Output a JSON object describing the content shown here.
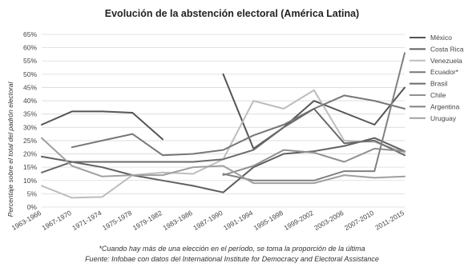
{
  "chart_data": {
    "type": "line",
    "title": "Evolución de la abstención electoral (América Latina)",
    "ylabel": "Percentaje sobre el total del padrón electoral",
    "xlabel": "",
    "ylim": [
      0,
      65
    ],
    "yticks": [
      "0%",
      "5%",
      "10%",
      "15%",
      "20%",
      "25%",
      "30%",
      "35%",
      "40%",
      "45%",
      "50%",
      "55%",
      "60%",
      "65%"
    ],
    "categories": [
      "1963-1966",
      "1967-1970",
      "1971-1974",
      "1975-1978",
      "1979-1982",
      "1983-1986",
      "1987-1990",
      "1991-1994",
      "1995-1998",
      "1999-2002",
      "2003-2006",
      "2007-2010",
      "2011-2015"
    ],
    "grid": true,
    "legend_position": "right",
    "series": [
      {
        "name": "México",
        "color": "#555555",
        "values": [
          31,
          36,
          36,
          35.5,
          25.5,
          null,
          50,
          22,
          30,
          40,
          35.5,
          31,
          45
        ]
      },
      {
        "name": "Costa Rica",
        "color": "#606060",
        "values": [
          19,
          17,
          15,
          12,
          10,
          8,
          5.5,
          15,
          20,
          21,
          23,
          26,
          21
        ]
      },
      {
        "name": "Venezuela",
        "color": "#bdbdbd",
        "values": [
          8,
          3.5,
          3.8,
          12,
          13,
          12.5,
          18,
          40,
          37,
          44,
          25,
          24.5,
          20.5
        ]
      },
      {
        "name": "Ecuador*",
        "color": "#777777",
        "values": [
          null,
          22.5,
          25,
          27.5,
          19.5,
          20,
          21.5,
          27,
          31,
          37,
          42,
          40,
          37
        ]
      },
      {
        "name": "Brasil",
        "color": "#6a6a6a",
        "values": [
          13,
          17,
          17,
          17,
          17,
          17,
          18,
          21.5,
          30,
          37,
          24,
          25,
          19.5
        ]
      },
      {
        "name": "Chile",
        "color": "#909090",
        "values": [
          null,
          null,
          null,
          null,
          null,
          null,
          12,
          15.5,
          21.5,
          20.5,
          17,
          22,
          21
        ]
      },
      {
        "name": "Argentina",
        "color": "#808080",
        "values": [
          null,
          null,
          null,
          null,
          null,
          null,
          12.5,
          10,
          10,
          10,
          13.5,
          13.5,
          58
        ]
      },
      {
        "name": "Uruguay",
        "color": "#a0a0a0",
        "values": [
          26,
          15.5,
          11.5,
          12,
          12,
          15,
          15.5,
          9,
          9,
          9,
          12,
          11,
          11.5
        ]
      }
    ],
    "footnotes": [
      "*Cuando hay más de una elección en el período, se toma la proporción de la última",
      "Fuente: Infobae con datos del  International Institute for Democracy and Electoral Assistance"
    ]
  }
}
